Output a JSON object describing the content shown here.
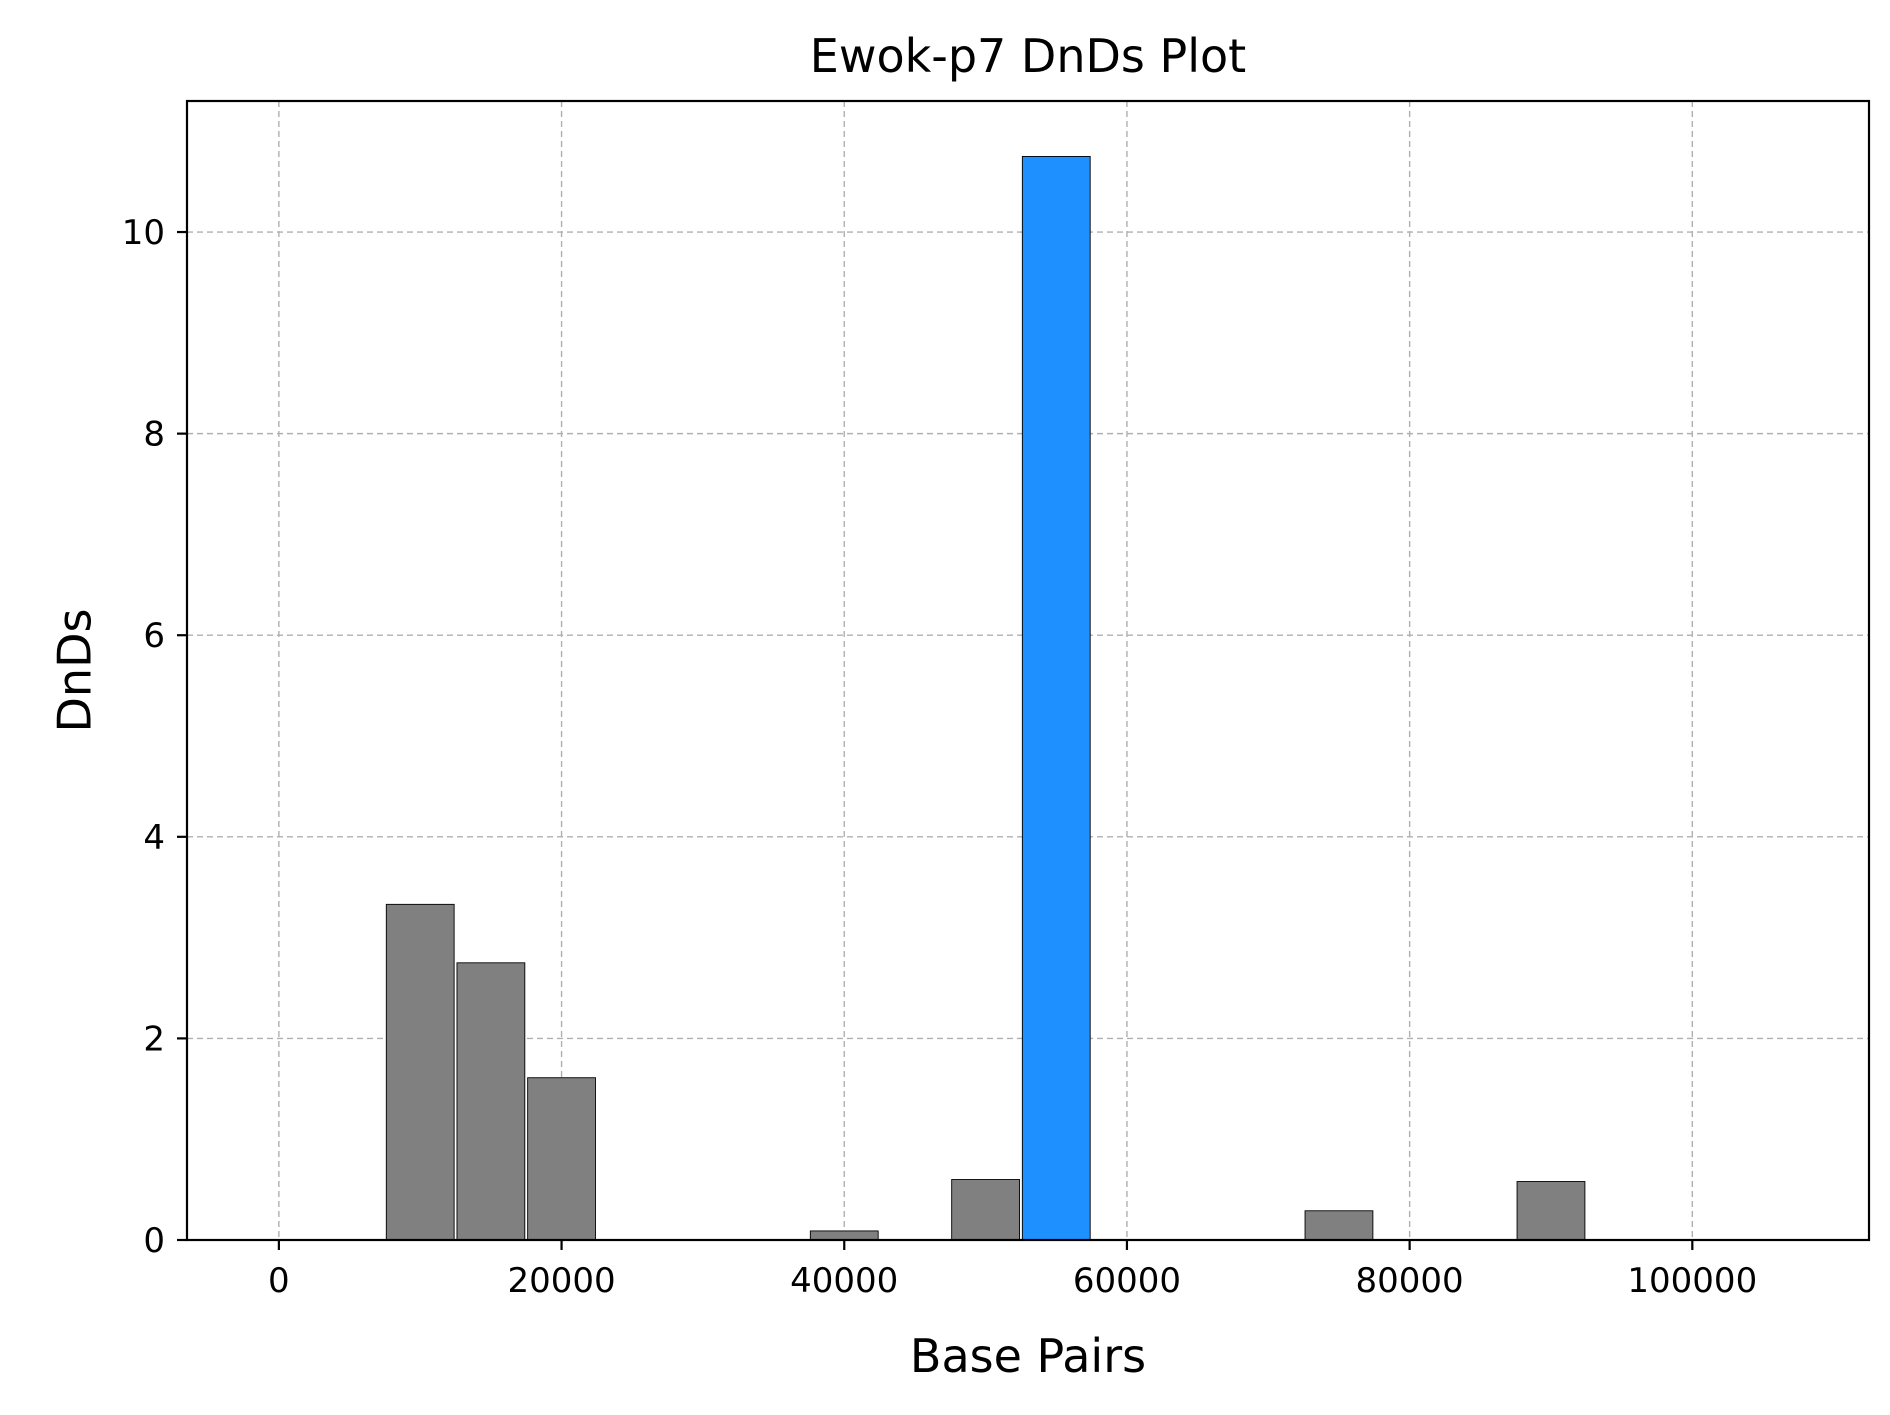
{
  "chart_data": {
    "type": "bar",
    "title": "Ewok-p7 DnDs Plot",
    "xlabel": "Base Pairs",
    "ylabel": "DnDs",
    "xlim": [
      -6500,
      112500
    ],
    "ylim": [
      0,
      11.3
    ],
    "x_ticks": [
      0,
      20000,
      40000,
      60000,
      80000,
      100000
    ],
    "y_ticks": [
      0,
      2,
      4,
      6,
      8,
      10
    ],
    "grid": true,
    "bar_width": 4800,
    "default_color": "#808080",
    "highlight_color": "#1e90ff",
    "bars": [
      {
        "x": 10000,
        "value": 3.33,
        "color": "#808080"
      },
      {
        "x": 15000,
        "value": 2.75,
        "color": "#808080"
      },
      {
        "x": 20000,
        "value": 1.61,
        "color": "#808080"
      },
      {
        "x": 40000,
        "value": 0.09,
        "color": "#808080"
      },
      {
        "x": 50000,
        "value": 0.6,
        "color": "#808080"
      },
      {
        "x": 55000,
        "value": 10.75,
        "color": "#1e90ff"
      },
      {
        "x": 75000,
        "value": 0.29,
        "color": "#808080"
      },
      {
        "x": 90000,
        "value": 0.58,
        "color": "#808080"
      }
    ]
  }
}
